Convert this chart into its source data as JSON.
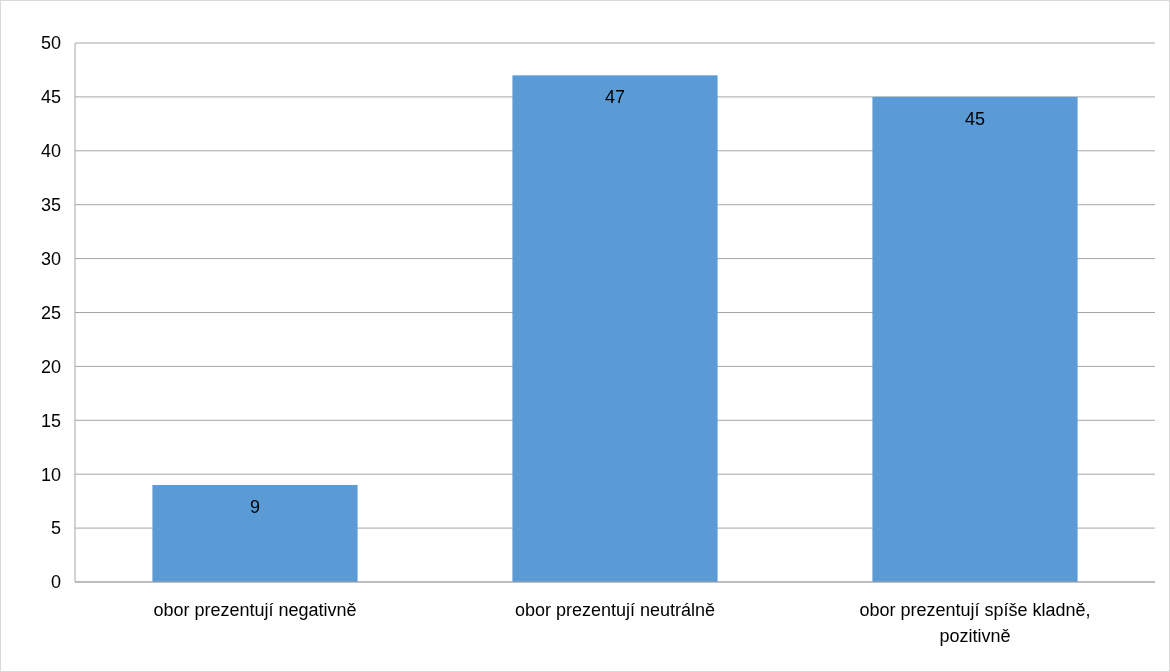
{
  "chart_data": {
    "type": "bar",
    "categories": [
      "obor prezentují negativně",
      "obor prezentují neutrálně",
      "obor prezentují spíše kladně, pozitivně"
    ],
    "values": [
      9,
      47,
      45
    ],
    "color": "#5b9bd5",
    "ylim": [
      0,
      50
    ],
    "yticks": [
      0,
      5,
      10,
      15,
      20,
      25,
      30,
      35,
      40,
      45,
      50
    ],
    "grid": "y",
    "data_labels": true
  }
}
